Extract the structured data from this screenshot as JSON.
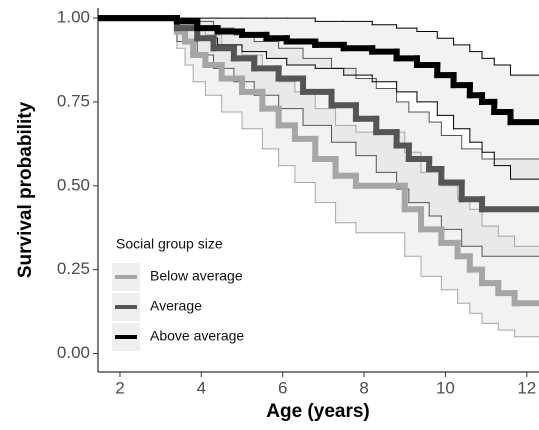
{
  "chart_data": {
    "type": "step",
    "x_label": "Age (years)",
    "y_label": "Survival probability",
    "legend_title": "Social group size",
    "legend": "bottom left",
    "xlim": [
      1.46,
      12.3
    ],
    "ylim": [
      -0.055,
      1.03
    ],
    "xticks": [
      2,
      4,
      6,
      8,
      10,
      12
    ],
    "yticks": [
      {
        "value": 0,
        "label": "0.00"
      },
      {
        "value": 0.25,
        "label": "0.25"
      },
      {
        "value": 0.5,
        "label": "0.50"
      },
      {
        "value": 0.75,
        "label": "0.75"
      },
      {
        "value": 1,
        "label": "1.00"
      }
    ],
    "series": [
      {
        "name": "Below average",
        "color": "#a6a6a6",
        "x": [
          0,
          3.4,
          3.6,
          3.8,
          4.1,
          4.5,
          5.0,
          5.5,
          5.9,
          6.3,
          6.8,
          7.3,
          7.8,
          9.0,
          9.4,
          9.9,
          10.3,
          10.6,
          10.9,
          11.3,
          11.7
        ],
        "values": [
          1.0,
          0.96,
          0.93,
          0.89,
          0.86,
          0.82,
          0.78,
          0.73,
          0.68,
          0.64,
          0.58,
          0.53,
          0.5,
          0.43,
          0.37,
          0.33,
          0.29,
          0.25,
          0.21,
          0.18,
          0.15
        ],
        "lower": [
          1.0,
          0.91,
          0.86,
          0.81,
          0.77,
          0.72,
          0.67,
          0.61,
          0.56,
          0.51,
          0.45,
          0.39,
          0.36,
          0.29,
          0.23,
          0.19,
          0.15,
          0.12,
          0.09,
          0.07,
          0.05
        ],
        "upper": [
          1.0,
          1.0,
          0.99,
          0.97,
          0.95,
          0.92,
          0.89,
          0.85,
          0.81,
          0.78,
          0.73,
          0.68,
          0.66,
          0.6,
          0.54,
          0.5,
          0.46,
          0.43,
          0.38,
          0.35,
          0.32
        ]
      },
      {
        "name": "Average",
        "color": "#555555",
        "x": [
          0,
          3.4,
          3.9,
          4.3,
          4.8,
          5.3,
          5.9,
          6.5,
          7.2,
          7.8,
          8.3,
          8.8,
          9.1,
          9.6,
          9.9,
          10.4,
          10.9
        ],
        "values": [
          1.0,
          0.97,
          0.94,
          0.91,
          0.88,
          0.85,
          0.82,
          0.78,
          0.74,
          0.7,
          0.66,
          0.62,
          0.58,
          0.55,
          0.51,
          0.46,
          0.43
        ],
        "lower": [
          1.0,
          0.93,
          0.89,
          0.85,
          0.81,
          0.77,
          0.73,
          0.68,
          0.63,
          0.59,
          0.54,
          0.49,
          0.45,
          0.41,
          0.37,
          0.32,
          0.29
        ],
        "upper": [
          1.0,
          1.0,
          0.99,
          0.97,
          0.95,
          0.93,
          0.91,
          0.88,
          0.85,
          0.82,
          0.79,
          0.75,
          0.72,
          0.69,
          0.65,
          0.61,
          0.58
        ]
      },
      {
        "name": "Above average",
        "color": "#000000",
        "x": [
          0,
          3.4,
          3.9,
          4.4,
          5.0,
          5.6,
          6.1,
          6.8,
          7.5,
          8.2,
          8.8,
          9.3,
          9.8,
          10.2,
          10.6,
          10.9,
          11.2,
          11.6
        ],
        "values": [
          1.0,
          0.99,
          0.97,
          0.96,
          0.95,
          0.94,
          0.93,
          0.92,
          0.91,
          0.9,
          0.88,
          0.86,
          0.83,
          0.8,
          0.77,
          0.75,
          0.72,
          0.69
        ],
        "lower": [
          1.0,
          0.97,
          0.94,
          0.92,
          0.9,
          0.88,
          0.86,
          0.85,
          0.83,
          0.81,
          0.78,
          0.75,
          0.71,
          0.67,
          0.63,
          0.6,
          0.56,
          0.52
        ],
        "upper": [
          1.0,
          1.0,
          1.0,
          1.0,
          1.0,
          1.0,
          1.0,
          0.99,
          0.99,
          0.98,
          0.97,
          0.96,
          0.94,
          0.92,
          0.9,
          0.88,
          0.86,
          0.83
        ]
      }
    ]
  }
}
